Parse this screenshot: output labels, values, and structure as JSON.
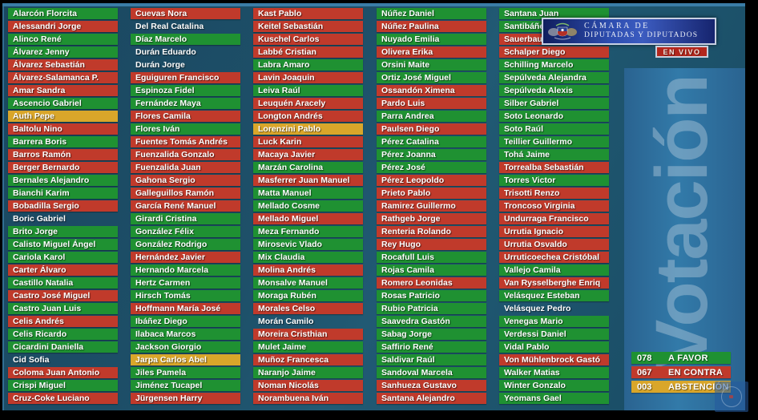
{
  "header": {
    "logo_line1": "CÁMARA DE",
    "logo_line2": "DIPUTADAS Y DIPUTADOS",
    "live_badge": "EN VIVO"
  },
  "banner": {
    "vertical_label": "Votación"
  },
  "results": [
    {
      "count": "078",
      "label": "A FAVOR",
      "type": "favor"
    },
    {
      "count": "067",
      "label": "EN CONTRA",
      "type": "contra"
    },
    {
      "count": "003",
      "label": "ABSTENCIÓN",
      "type": "abstencion"
    }
  ],
  "colors": {
    "favor": "#1f9132",
    "contra": "#c03a2b",
    "abstencion": "#d9a62a",
    "background": "#1d4d66",
    "panel": "#2e6d9b",
    "live_red": "#b3271d",
    "logo_blue": "#2c4cae"
  },
  "columns": [
    [
      {
        "name": "Alarcón Florcita",
        "vote": "favor"
      },
      {
        "name": "Alessandri Jorge",
        "vote": "contra"
      },
      {
        "name": "Alinco René",
        "vote": "favor"
      },
      {
        "name": "Álvarez Jenny",
        "vote": "favor"
      },
      {
        "name": "Álvarez Sebastián",
        "vote": "contra"
      },
      {
        "name": "Álvarez-Salamanca P.",
        "vote": "contra"
      },
      {
        "name": "Amar Sandra",
        "vote": "contra"
      },
      {
        "name": "Ascencio Gabriel",
        "vote": "favor"
      },
      {
        "name": "Auth Pepe",
        "vote": "abstencion"
      },
      {
        "name": "Baltolu Nino",
        "vote": "contra"
      },
      {
        "name": "Barrera Boris",
        "vote": "favor"
      },
      {
        "name": "Barros Ramón",
        "vote": "contra"
      },
      {
        "name": "Berger Bernardo",
        "vote": "contra"
      },
      {
        "name": "Bernales Alejandro",
        "vote": "favor"
      },
      {
        "name": "Bianchi Karim",
        "vote": "favor"
      },
      {
        "name": "Bobadilla Sergio",
        "vote": "contra"
      },
      {
        "name": "Boric Gabriel",
        "vote": "none"
      },
      {
        "name": "Brito Jorge",
        "vote": "favor"
      },
      {
        "name": "Calisto Miguel Ángel",
        "vote": "favor"
      },
      {
        "name": "Cariola Karol",
        "vote": "favor"
      },
      {
        "name": "Carter Álvaro",
        "vote": "contra"
      },
      {
        "name": "Castillo Natalia",
        "vote": "favor"
      },
      {
        "name": "Castro José Miguel",
        "vote": "contra"
      },
      {
        "name": "Castro Juan Luis",
        "vote": "favor"
      },
      {
        "name": "Celis Andrés",
        "vote": "contra"
      },
      {
        "name": "Celis Ricardo",
        "vote": "favor"
      },
      {
        "name": "Cicardini Daniella",
        "vote": "favor"
      },
      {
        "name": "Cid Sofia",
        "vote": "none"
      },
      {
        "name": "Coloma Juan Antonio",
        "vote": "contra"
      },
      {
        "name": "Crispi Miguel",
        "vote": "favor"
      },
      {
        "name": "Cruz-Coke Luciano",
        "vote": "contra"
      }
    ],
    [
      {
        "name": "Cuevas Nora",
        "vote": "contra"
      },
      {
        "name": "Del Real Catalina",
        "vote": "none"
      },
      {
        "name": "Díaz Marcelo",
        "vote": "favor"
      },
      {
        "name": "Durán Eduardo",
        "vote": "none"
      },
      {
        "name": "Durán Jorge",
        "vote": "none"
      },
      {
        "name": "Eguiguren Francisco",
        "vote": "contra"
      },
      {
        "name": "Espinoza Fidel",
        "vote": "favor"
      },
      {
        "name": "Fernández Maya",
        "vote": "favor"
      },
      {
        "name": "Flores Camila",
        "vote": "contra"
      },
      {
        "name": "Flores Iván",
        "vote": "favor"
      },
      {
        "name": "Fuentes Tomás Andrés",
        "vote": "contra"
      },
      {
        "name": "Fuenzalida Gonzalo",
        "vote": "contra"
      },
      {
        "name": "Fuenzalida Juan",
        "vote": "contra"
      },
      {
        "name": "Gahona Sergio",
        "vote": "contra"
      },
      {
        "name": "Galleguillos Ramón",
        "vote": "contra"
      },
      {
        "name": "García René Manuel",
        "vote": "contra"
      },
      {
        "name": "Girardi Cristina",
        "vote": "favor"
      },
      {
        "name": "González Félix",
        "vote": "favor"
      },
      {
        "name": "González Rodrigo",
        "vote": "favor"
      },
      {
        "name": "Hernández Javier",
        "vote": "contra"
      },
      {
        "name": "Hernando Marcela",
        "vote": "favor"
      },
      {
        "name": "Hertz Carmen",
        "vote": "favor"
      },
      {
        "name": "Hirsch Tomás",
        "vote": "favor"
      },
      {
        "name": "Hoffmann María José",
        "vote": "contra"
      },
      {
        "name": "Ibáñez Diego",
        "vote": "favor"
      },
      {
        "name": "Ilabaca Marcos",
        "vote": "favor"
      },
      {
        "name": "Jackson Giorgio",
        "vote": "favor"
      },
      {
        "name": "Jarpa Carlos Abel",
        "vote": "abstencion"
      },
      {
        "name": "Jiles Pamela",
        "vote": "favor"
      },
      {
        "name": "Jiménez Tucapel",
        "vote": "favor"
      },
      {
        "name": "Jürgensen Harry",
        "vote": "contra"
      }
    ],
    [
      {
        "name": "Kast Pablo",
        "vote": "contra"
      },
      {
        "name": "Keitel Sebastián",
        "vote": "contra"
      },
      {
        "name": "Kuschel Carlos",
        "vote": "contra"
      },
      {
        "name": "Labbé Cristian",
        "vote": "contra"
      },
      {
        "name": "Labra Amaro",
        "vote": "favor"
      },
      {
        "name": "Lavin Joaquin",
        "vote": "contra"
      },
      {
        "name": "Leiva Raúl",
        "vote": "favor"
      },
      {
        "name": "Leuquén Aracely",
        "vote": "contra"
      },
      {
        "name": "Longton Andrés",
        "vote": "contra"
      },
      {
        "name": "Lorenzini Pablo",
        "vote": "abstencion"
      },
      {
        "name": "Luck Karin",
        "vote": "contra"
      },
      {
        "name": "Macaya Javier",
        "vote": "contra"
      },
      {
        "name": "Marzán Carolina",
        "vote": "favor"
      },
      {
        "name": "Masferrer Juan Manuel",
        "vote": "contra"
      },
      {
        "name": "Matta Manuel",
        "vote": "favor"
      },
      {
        "name": "Mellado Cosme",
        "vote": "favor"
      },
      {
        "name": "Mellado Miguel",
        "vote": "contra"
      },
      {
        "name": "Meza Fernando",
        "vote": "favor"
      },
      {
        "name": "Mirosevic Vlado",
        "vote": "favor"
      },
      {
        "name": "Mix Claudia",
        "vote": "favor"
      },
      {
        "name": "Molina Andrés",
        "vote": "contra"
      },
      {
        "name": "Monsalve Manuel",
        "vote": "favor"
      },
      {
        "name": "Moraga Rubén",
        "vote": "favor"
      },
      {
        "name": "Morales Celso",
        "vote": "contra"
      },
      {
        "name": "Morán Camilo",
        "vote": "none"
      },
      {
        "name": "Moreira Cristhian",
        "vote": "contra"
      },
      {
        "name": "Mulet Jaime",
        "vote": "favor"
      },
      {
        "name": "Muñoz Francesca",
        "vote": "contra"
      },
      {
        "name": "Naranjo Jaime",
        "vote": "favor"
      },
      {
        "name": "Noman Nicolás",
        "vote": "contra"
      },
      {
        "name": "Norambuena Iván",
        "vote": "contra"
      }
    ],
    [
      {
        "name": "Núñez Daniel",
        "vote": "favor"
      },
      {
        "name": "Núñez Paulina",
        "vote": "contra"
      },
      {
        "name": "Nuyado Emilia",
        "vote": "favor"
      },
      {
        "name": "Olivera Erika",
        "vote": "contra"
      },
      {
        "name": "Orsini Maite",
        "vote": "favor"
      },
      {
        "name": "Ortiz José Miguel",
        "vote": "favor"
      },
      {
        "name": "Ossandón Ximena",
        "vote": "contra"
      },
      {
        "name": "Pardo Luis",
        "vote": "contra"
      },
      {
        "name": "Parra Andrea",
        "vote": "favor"
      },
      {
        "name": "Paulsen Diego",
        "vote": "contra"
      },
      {
        "name": "Pérez Catalina",
        "vote": "favor"
      },
      {
        "name": "Pérez Joanna",
        "vote": "favor"
      },
      {
        "name": "Pérez José",
        "vote": "favor"
      },
      {
        "name": "Pérez Leopoldo",
        "vote": "contra"
      },
      {
        "name": "Prieto Pablo",
        "vote": "contra"
      },
      {
        "name": "Ramirez Guillermo",
        "vote": "contra"
      },
      {
        "name": "Rathgeb Jorge",
        "vote": "contra"
      },
      {
        "name": "Renteria Rolando",
        "vote": "contra"
      },
      {
        "name": "Rey Hugo",
        "vote": "contra"
      },
      {
        "name": "Rocafull Luis",
        "vote": "favor"
      },
      {
        "name": "Rojas Camila",
        "vote": "favor"
      },
      {
        "name": "Romero Leonidas",
        "vote": "contra"
      },
      {
        "name": "Rosas Patricio",
        "vote": "favor"
      },
      {
        "name": "Rubio Patricia",
        "vote": "favor"
      },
      {
        "name": "Saavedra Gastón",
        "vote": "favor"
      },
      {
        "name": "Sabag Jorge",
        "vote": "favor"
      },
      {
        "name": "Saffirio René",
        "vote": "favor"
      },
      {
        "name": "Saldivar Raúl",
        "vote": "favor"
      },
      {
        "name": "Sandoval Marcela",
        "vote": "favor"
      },
      {
        "name": "Sanhueza Gustavo",
        "vote": "contra"
      },
      {
        "name": "Santana Alejandro",
        "vote": "contra"
      }
    ],
    [
      {
        "name": "Santana Juan",
        "vote": "favor"
      },
      {
        "name": "Santibáñez Marisela",
        "vote": "favor"
      },
      {
        "name": "Sauerbaum Frank",
        "vote": "contra"
      },
      {
        "name": "Schalper Diego",
        "vote": "contra"
      },
      {
        "name": "Schilling Marcelo",
        "vote": "favor"
      },
      {
        "name": "Sepúlveda Alejandra",
        "vote": "favor"
      },
      {
        "name": "Sepúlveda Alexis",
        "vote": "favor"
      },
      {
        "name": "Silber Gabriel",
        "vote": "favor"
      },
      {
        "name": "Soto Leonardo",
        "vote": "favor"
      },
      {
        "name": "Soto Raúl",
        "vote": "favor"
      },
      {
        "name": "Teillier Guillermo",
        "vote": "favor"
      },
      {
        "name": "Tohá Jaime",
        "vote": "favor"
      },
      {
        "name": "Torrealba Sebastián",
        "vote": "contra"
      },
      {
        "name": "Torres Victor",
        "vote": "favor"
      },
      {
        "name": "Trisotti Renzo",
        "vote": "contra"
      },
      {
        "name": "Troncoso Virginia",
        "vote": "contra"
      },
      {
        "name": "Undurraga Francisco",
        "vote": "contra"
      },
      {
        "name": "Urrutia Ignacio",
        "vote": "contra"
      },
      {
        "name": "Urrutia Osvaldo",
        "vote": "contra"
      },
      {
        "name": "Urruticoechea Cristóbal",
        "vote": "contra"
      },
      {
        "name": "Vallejo Camila",
        "vote": "favor"
      },
      {
        "name": "Van Rysselberghe Enriq",
        "vote": "contra"
      },
      {
        "name": "Velásquez Esteban",
        "vote": "favor"
      },
      {
        "name": "Velásquez Pedro",
        "vote": "none"
      },
      {
        "name": "Venegas Mario",
        "vote": "favor"
      },
      {
        "name": "Verdessi Daniel",
        "vote": "favor"
      },
      {
        "name": "Vidal Pablo",
        "vote": "favor"
      },
      {
        "name": "Von Mühlenbrock Gastó",
        "vote": "contra"
      },
      {
        "name": "Walker Matias",
        "vote": "favor"
      },
      {
        "name": "Winter Gonzalo",
        "vote": "favor"
      },
      {
        "name": "Yeomans Gael",
        "vote": "favor"
      }
    ]
  ]
}
